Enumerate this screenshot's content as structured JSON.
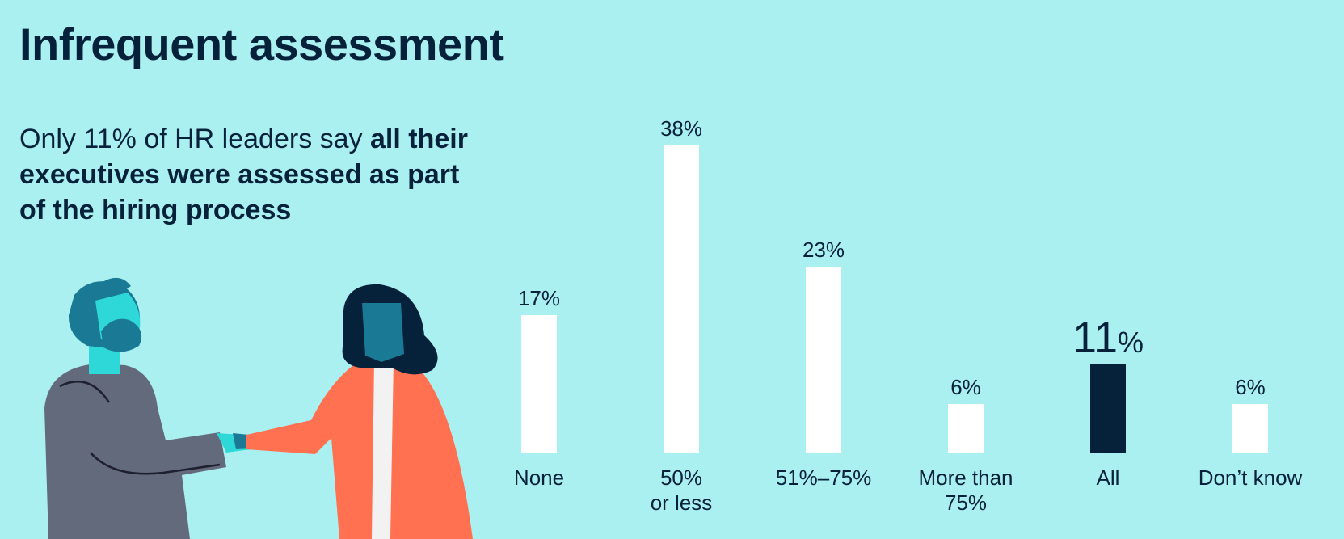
{
  "header": {
    "title": "Infrequent assessment"
  },
  "subtitle": {
    "plain": "Only 11% of HR leaders say ",
    "bold": "all their executives were assessed as part of the hiring process"
  },
  "colors": {
    "background": "#aaf0f0",
    "bar": "#ffffff",
    "highlight_bar": "#06213a",
    "text": "#06213a"
  },
  "illustration": {
    "icon": "handshake-people-illustration"
  },
  "chart_data": {
    "type": "bar",
    "title": "",
    "xlabel": "",
    "ylabel": "",
    "categories": [
      [
        "None"
      ],
      [
        "50%",
        "or less"
      ],
      [
        "51%–75%"
      ],
      [
        "More than",
        "75%"
      ],
      [
        "All"
      ],
      [
        "Don’t know"
      ]
    ],
    "values": [
      17,
      38,
      23,
      6,
      11,
      6
    ],
    "value_labels": [
      "17%",
      "38%",
      "23%",
      "6%",
      "11%",
      "6%"
    ],
    "highlight_index": 4,
    "highlight_label": {
      "number": "11",
      "unit": "%"
    },
    "ylim": [
      0,
      38
    ],
    "grid": false,
    "legend": "none"
  }
}
